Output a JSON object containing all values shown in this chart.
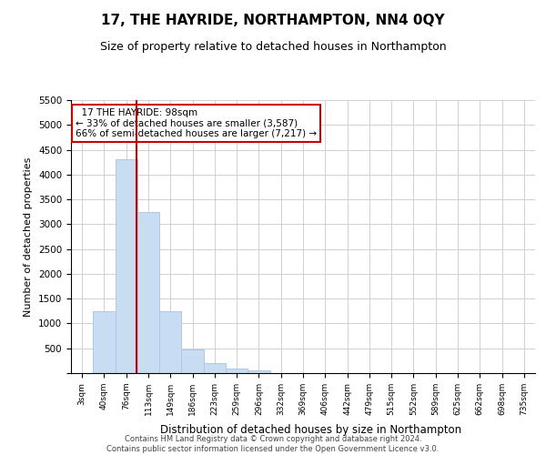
{
  "title": "17, THE HAYRIDE, NORTHAMPTON, NN4 0QY",
  "subtitle": "Size of property relative to detached houses in Northampton",
  "xlabel": "Distribution of detached houses by size in Northampton",
  "ylabel": "Number of detached properties",
  "footer_line1": "Contains HM Land Registry data © Crown copyright and database right 2024.",
  "footer_line2": "Contains public sector information licensed under the Open Government Licence v3.0.",
  "annotation_title": "17 THE HAYRIDE: 98sqm",
  "annotation_line2": "← 33% of detached houses are smaller (3,587)",
  "annotation_line3": "66% of semi-detached houses are larger (7,217) →",
  "bar_edge_color": "#aec6e8",
  "bar_face_color": "#c8ddf2",
  "vertical_line_color": "#cc0000",
  "annotation_box_edge_color": "#cc0000",
  "background_color": "#ffffff",
  "grid_color": "#d0d0d0",
  "categories": [
    "3sqm",
    "40sqm",
    "76sqm",
    "113sqm",
    "149sqm",
    "186sqm",
    "223sqm",
    "259sqm",
    "296sqm",
    "332sqm",
    "369sqm",
    "406sqm",
    "442sqm",
    "479sqm",
    "515sqm",
    "552sqm",
    "589sqm",
    "625sqm",
    "662sqm",
    "698sqm",
    "735sqm"
  ],
  "values": [
    0,
    1250,
    4300,
    3250,
    1250,
    480,
    200,
    100,
    60,
    0,
    0,
    0,
    0,
    0,
    0,
    0,
    0,
    0,
    0,
    0,
    0
  ],
  "ylim": [
    0,
    5500
  ],
  "yticks": [
    0,
    500,
    1000,
    1500,
    2000,
    2500,
    3000,
    3500,
    4000,
    4500,
    5000,
    5500
  ],
  "vline_x_index": 2.45,
  "figsize": [
    6.0,
    5.0
  ],
  "dpi": 100
}
